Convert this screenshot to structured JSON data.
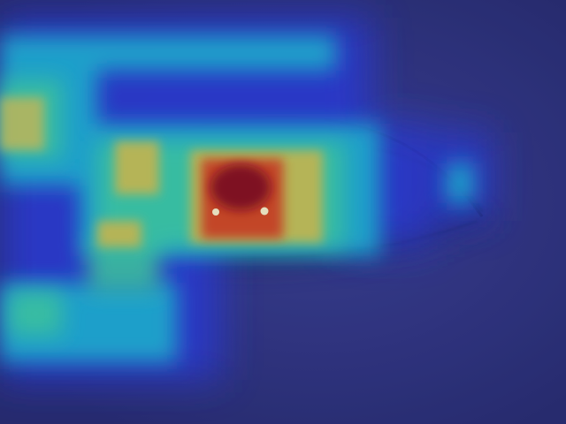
{
  "image": {
    "subject": "",
    "colormap": "jet",
    "colors": {
      "background": "#2b2f7a",
      "skin_tint": "#3a3f8e",
      "low": "#2a3bd9",
      "mid_low": "#1fb6d6",
      "mid": "#3fd6a0",
      "mid_high": "#d9c64a",
      "high": "#d94a1a",
      "peak": "#8a0a12",
      "eye_outline": "#1e2350",
      "lash": "#1a1d45",
      "highlight": "#fff6c8"
    },
    "heatmap": {
      "peak_level": 1.0,
      "levels_present": [
        "low",
        "mid_low",
        "mid",
        "mid_high",
        "high",
        "peak"
      ]
    }
  }
}
